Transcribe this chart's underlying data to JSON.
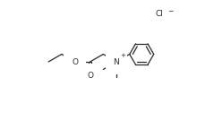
{
  "background_color": "#ffffff",
  "fig_width": 2.39,
  "fig_height": 1.44,
  "dpi": 100,
  "Cl_label": "Cl",
  "Cl_charge": "−",
  "N_label": "N",
  "N_charge": "+",
  "O_ether": "O",
  "O_carbonyl": "O",
  "line_color": "#2a2a2a",
  "text_color": "#2a2a2a",
  "font_size_atoms": 6.5,
  "font_size_charge": 5.5,
  "line_width": 0.9
}
